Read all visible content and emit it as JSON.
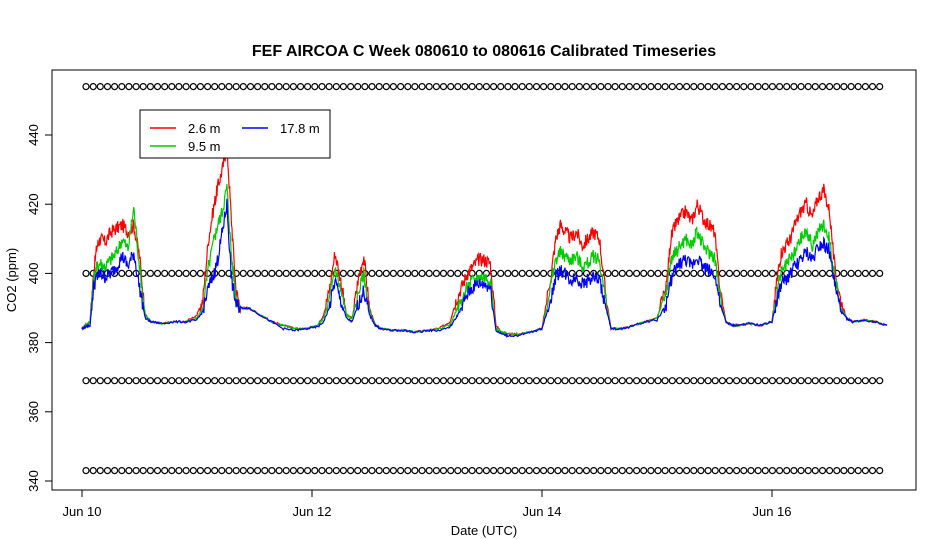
{
  "chart_data": {
    "type": "line",
    "title": "FEF AIRCOA C  Week 080610 to 080616  Calibrated Timeseries",
    "xlabel": "Date (UTC)",
    "ylabel": "CO2 (ppm)",
    "xlim": [
      0,
      7.3
    ],
    "ylim": [
      338,
      456
    ],
    "x_ticks": [
      {
        "value": 0,
        "label": "Jun 10"
      },
      {
        "value": 2,
        "label": "Jun 12"
      },
      {
        "value": 4,
        "label": "Jun 14"
      },
      {
        "value": 6,
        "label": "Jun 16"
      }
    ],
    "y_ticks": [
      340,
      360,
      380,
      400,
      420,
      440
    ],
    "grid": false,
    "legend_position": "top-left",
    "series": [
      {
        "name": "2.6 m",
        "color": "#ff0000",
        "x": [
          0.0,
          0.03,
          0.07,
          0.1,
          0.13,
          0.16,
          0.2,
          0.25,
          0.3,
          0.35,
          0.4,
          0.45,
          0.5,
          0.55,
          0.6,
          0.7,
          0.8,
          0.9,
          1.0,
          1.05,
          1.1,
          1.15,
          1.18,
          1.22,
          1.26,
          1.3,
          1.34,
          1.38,
          1.45,
          1.55,
          1.65,
          1.75,
          1.85,
          1.95,
          2.05,
          2.1,
          2.15,
          2.2,
          2.25,
          2.3,
          2.35,
          2.4,
          2.45,
          2.5,
          2.55,
          2.6,
          2.7,
          2.8,
          2.9,
          3.0,
          3.1,
          3.2,
          3.25,
          3.3,
          3.35,
          3.4,
          3.45,
          3.5,
          3.55,
          3.6,
          3.65,
          3.7,
          3.8,
          3.9,
          4.0,
          4.08,
          4.12,
          4.16,
          4.2,
          4.25,
          4.3,
          4.35,
          4.4,
          4.45,
          4.5,
          4.55,
          4.6,
          4.7,
          4.8,
          4.9,
          5.0,
          5.08,
          5.12,
          5.16,
          5.2,
          5.25,
          5.3,
          5.35,
          5.4,
          5.45,
          5.5,
          5.55,
          5.6,
          5.65,
          5.7,
          5.8,
          5.9,
          6.0,
          6.05,
          6.08,
          6.12,
          6.16,
          6.2,
          6.25,
          6.3,
          6.35,
          6.4,
          6.45,
          6.5,
          6.55,
          6.6,
          6.65,
          6.7,
          6.8,
          6.9,
          7.0
        ],
        "y": [
          384,
          385,
          386,
          400,
          408,
          410,
          409,
          412,
          413,
          414,
          412,
          414,
          405,
          388,
          386,
          385.5,
          386,
          386,
          388,
          392,
          410,
          420,
          425,
          430,
          437,
          415,
          395,
          390,
          390,
          388,
          386,
          385,
          384,
          384,
          385,
          388,
          395,
          406,
          398,
          388,
          387,
          398,
          405,
          390,
          385,
          384,
          383.5,
          383.5,
          383,
          383.5,
          384,
          386,
          392,
          396,
          400,
          402,
          404,
          404,
          403,
          385,
          383,
          382.5,
          382.5,
          383,
          384,
          400,
          410,
          414,
          412,
          410,
          412,
          408,
          410,
          412,
          410,
          395,
          384,
          384,
          385,
          386,
          387,
          396,
          410,
          414,
          416,
          418,
          415,
          420,
          416,
          414,
          412,
          395,
          386,
          385,
          385,
          385.5,
          385,
          386,
          400,
          406,
          408,
          410,
          414,
          418,
          420,
          416,
          422,
          424,
          418,
          400,
          392,
          387,
          386,
          386.5,
          386,
          385
        ]
      },
      {
        "name": "9.5 m",
        "color": "#00cc00",
        "x": [
          0.0,
          0.03,
          0.07,
          0.1,
          0.13,
          0.16,
          0.2,
          0.25,
          0.3,
          0.35,
          0.4,
          0.45,
          0.5,
          0.55,
          0.6,
          0.7,
          0.8,
          0.9,
          1.0,
          1.05,
          1.1,
          1.15,
          1.18,
          1.22,
          1.26,
          1.3,
          1.34,
          1.38,
          1.45,
          1.55,
          1.65,
          1.75,
          1.85,
          1.95,
          2.05,
          2.1,
          2.15,
          2.2,
          2.25,
          2.3,
          2.35,
          2.4,
          2.45,
          2.5,
          2.55,
          2.6,
          2.7,
          2.8,
          2.9,
          3.0,
          3.1,
          3.2,
          3.25,
          3.3,
          3.35,
          3.4,
          3.45,
          3.5,
          3.55,
          3.6,
          3.65,
          3.7,
          3.8,
          3.9,
          4.0,
          4.08,
          4.12,
          4.16,
          4.2,
          4.25,
          4.3,
          4.35,
          4.4,
          4.45,
          4.5,
          4.55,
          4.6,
          4.7,
          4.8,
          4.9,
          5.0,
          5.08,
          5.12,
          5.16,
          5.2,
          5.25,
          5.3,
          5.35,
          5.4,
          5.45,
          5.5,
          5.55,
          5.6,
          5.65,
          5.7,
          5.8,
          5.9,
          6.0,
          6.05,
          6.08,
          6.12,
          6.16,
          6.2,
          6.25,
          6.3,
          6.35,
          6.4,
          6.45,
          6.5,
          6.55,
          6.6,
          6.65,
          6.7,
          6.8,
          6.9,
          7.0
        ],
        "y": [
          384,
          385,
          386,
          398,
          402,
          403,
          402,
          404,
          406,
          410,
          407,
          419,
          402,
          388,
          386,
          385.5,
          386,
          386,
          387,
          390,
          402,
          410,
          414,
          418,
          425,
          405,
          393,
          390,
          390,
          388,
          386,
          385,
          384,
          384,
          385,
          387,
          392,
          402,
          395,
          388,
          387,
          394,
          400,
          389,
          385,
          384,
          383.5,
          383.5,
          383,
          383.5,
          384,
          385,
          389,
          392,
          396,
          398,
          399,
          399,
          398,
          384,
          383,
          382.5,
          382.5,
          383,
          384,
          397,
          404,
          406,
          405,
          404,
          405,
          402,
          403,
          405,
          404,
          393,
          384,
          384,
          385,
          386,
          387,
          394,
          404,
          406,
          408,
          410,
          408,
          412,
          408,
          406,
          405,
          393,
          386,
          385,
          385,
          385.5,
          385,
          386,
          396,
          400,
          402,
          404,
          406,
          410,
          412,
          408,
          412,
          414,
          410,
          398,
          390,
          387,
          386,
          386.5,
          386,
          385
        ]
      },
      {
        "name": "17.8 m",
        "color": "#0000ff",
        "x": [
          0.0,
          0.03,
          0.07,
          0.1,
          0.13,
          0.16,
          0.2,
          0.25,
          0.3,
          0.35,
          0.4,
          0.45,
          0.5,
          0.55,
          0.6,
          0.7,
          0.8,
          0.9,
          1.0,
          1.05,
          1.1,
          1.15,
          1.18,
          1.22,
          1.26,
          1.3,
          1.34,
          1.38,
          1.45,
          1.55,
          1.65,
          1.75,
          1.85,
          1.95,
          2.05,
          2.1,
          2.15,
          2.2,
          2.25,
          2.3,
          2.35,
          2.4,
          2.45,
          2.5,
          2.55,
          2.6,
          2.7,
          2.8,
          2.9,
          3.0,
          3.1,
          3.2,
          3.25,
          3.3,
          3.35,
          3.4,
          3.45,
          3.5,
          3.55,
          3.6,
          3.65,
          3.7,
          3.8,
          3.9,
          4.0,
          4.08,
          4.12,
          4.16,
          4.2,
          4.25,
          4.3,
          4.35,
          4.4,
          4.45,
          4.5,
          4.55,
          4.6,
          4.7,
          4.8,
          4.9,
          5.0,
          5.08,
          5.12,
          5.16,
          5.2,
          5.25,
          5.3,
          5.35,
          5.4,
          5.45,
          5.5,
          5.55,
          5.6,
          5.65,
          5.7,
          5.8,
          5.9,
          6.0,
          6.05,
          6.08,
          6.12,
          6.16,
          6.2,
          6.25,
          6.3,
          6.35,
          6.4,
          6.45,
          6.5,
          6.55,
          6.6,
          6.65,
          6.7,
          6.8,
          6.9,
          7.0
        ],
        "y": [
          384,
          384.5,
          385,
          396,
          399,
          400,
          399,
          400,
          402,
          405,
          402,
          406,
          396,
          387,
          386,
          385.5,
          386,
          386,
          386.5,
          389,
          396,
          400,
          404,
          412,
          420,
          398,
          391,
          390,
          390,
          388,
          386,
          384,
          383.5,
          384,
          384.5,
          386,
          390,
          398,
          392,
          387,
          386,
          391,
          395,
          388,
          385,
          384,
          383.5,
          383.5,
          383,
          383.5,
          383.5,
          384.5,
          387,
          390,
          394,
          396,
          397,
          397,
          396,
          383.5,
          382.5,
          382,
          382,
          383,
          384,
          393,
          399,
          401,
          400,
          398,
          399,
          397,
          398,
          399,
          398,
          391,
          384,
          384,
          385,
          386,
          386.5,
          391,
          398,
          401,
          403,
          404,
          402,
          405,
          402,
          401,
          400,
          391,
          386,
          385,
          385,
          385.5,
          385,
          386,
          393,
          397,
          398,
          400,
          402,
          404,
          406,
          404,
          408,
          409,
          406,
          396,
          389,
          387,
          386,
          386.5,
          386,
          385
        ]
      }
    ],
    "marker_rows": [
      454,
      400,
      369,
      343
    ]
  }
}
